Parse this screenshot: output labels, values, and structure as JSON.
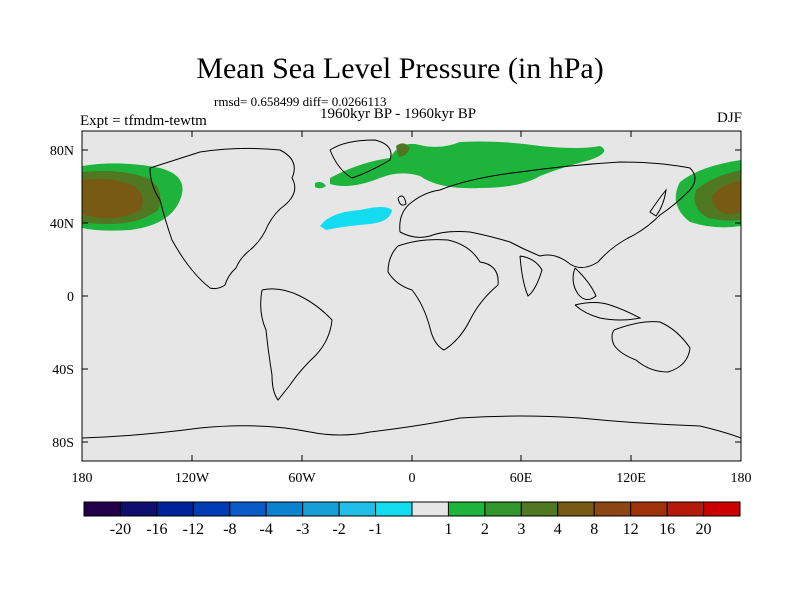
{
  "title": "Mean Sea Level Pressure (in hPa)",
  "stats": "rmsd= 0.658499 diff= 0.0266113",
  "period": "1960kyr BP - 1960kyr BP",
  "expt": "Expt = tfmdm-tewtm",
  "season": "DJF",
  "lat_labels": [
    "80N",
    "40N",
    "0",
    "40S",
    "80S"
  ],
  "lon_labels": [
    "180",
    "120W",
    "60W",
    "0",
    "60E",
    "120E",
    "180"
  ],
  "colorbar": {
    "colors": [
      "#24004a",
      "#0f0f6e",
      "#00239b",
      "#003cb4",
      "#0a5ac8",
      "#0a82cd",
      "#14a0d7",
      "#1ebee6",
      "#14dcf0",
      "#e6e6e6",
      "#1eb43c",
      "#32962d",
      "#507823",
      "#785a14",
      "#8c4614",
      "#a0320a",
      "#b4190a",
      "#cc0000"
    ],
    "labels": [
      "-20",
      "-16",
      "-12",
      "-8",
      "-4",
      "-3",
      "-2",
      "-1",
      "1",
      "2",
      "3",
      "4",
      "8",
      "12",
      "16",
      "20"
    ]
  },
  "map_colors": {
    "ocean_bg": "#e6e6e6",
    "positive_1": "#1eb43c",
    "positive_2": "#32962d",
    "positive_3": "#507823",
    "positive_4": "#785a14",
    "negative_1": "#14dcf0"
  }
}
